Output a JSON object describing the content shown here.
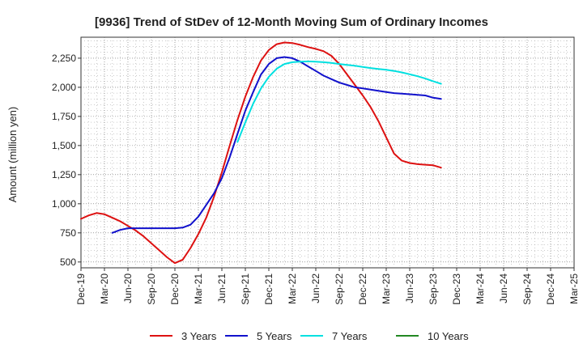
{
  "chart_data": {
    "type": "line",
    "title": "[9936]  Trend of StDev of 12-Month Moving Sum of Ordinary Incomes",
    "xlabel": "",
    "ylabel": "Amount (million yen)",
    "x_ticks": [
      "Dec-19",
      "Mar-20",
      "Jun-20",
      "Sep-20",
      "Dec-20",
      "Mar-21",
      "Jun-21",
      "Sep-21",
      "Dec-21",
      "Mar-22",
      "Jun-22",
      "Sep-22",
      "Dec-22",
      "Mar-23",
      "Jun-23",
      "Sep-23",
      "Dec-23",
      "Mar-24",
      "Jun-24",
      "Sep-24",
      "Dec-24",
      "Mar-25"
    ],
    "y_ticks": [
      "500",
      "750",
      "1,000",
      "1,250",
      "1,500",
      "1,750",
      "2,000",
      "2,250"
    ],
    "y_tick_values": [
      500,
      750,
      1000,
      1250,
      1500,
      1750,
      2000,
      2250
    ],
    "ylim": [
      450,
      2430
    ],
    "grid": true,
    "legend_position": "bottom",
    "series": [
      {
        "name": "3 Years",
        "color": "#dd1111",
        "points": [
          [
            0,
            870
          ],
          [
            1,
            900
          ],
          [
            2,
            920
          ],
          [
            3,
            910
          ],
          [
            4,
            880
          ],
          [
            5,
            850
          ],
          [
            6,
            810
          ],
          [
            7,
            770
          ],
          [
            8,
            720
          ],
          [
            9,
            660
          ],
          [
            10,
            600
          ],
          [
            11,
            540
          ],
          [
            12,
            490
          ],
          [
            13,
            520
          ],
          [
            14,
            620
          ],
          [
            15,
            740
          ],
          [
            16,
            880
          ],
          [
            17,
            1060
          ],
          [
            18,
            1270
          ],
          [
            19,
            1500
          ],
          [
            20,
            1720
          ],
          [
            21,
            1920
          ],
          [
            22,
            2090
          ],
          [
            23,
            2230
          ],
          [
            24,
            2320
          ],
          [
            25,
            2370
          ],
          [
            26,
            2385
          ],
          [
            27,
            2380
          ],
          [
            28,
            2365
          ],
          [
            29,
            2345
          ],
          [
            30,
            2330
          ],
          [
            31,
            2310
          ],
          [
            32,
            2270
          ],
          [
            33,
            2200
          ],
          [
            34,
            2110
          ],
          [
            35,
            2020
          ],
          [
            36,
            1930
          ],
          [
            37,
            1830
          ],
          [
            38,
            1710
          ],
          [
            39,
            1570
          ],
          [
            40,
            1430
          ],
          [
            41,
            1370
          ],
          [
            42,
            1350
          ],
          [
            43,
            1340
          ],
          [
            44,
            1335
          ],
          [
            45,
            1330
          ],
          [
            46,
            1310
          ]
        ]
      },
      {
        "name": "5 Years",
        "color": "#1111cc",
        "points": [
          [
            4,
            750
          ],
          [
            5,
            775
          ],
          [
            6,
            790
          ],
          [
            7,
            790
          ],
          [
            8,
            790
          ],
          [
            9,
            790
          ],
          [
            10,
            790
          ],
          [
            11,
            790
          ],
          [
            12,
            790
          ],
          [
            13,
            795
          ],
          [
            14,
            820
          ],
          [
            15,
            890
          ],
          [
            16,
            990
          ],
          [
            17,
            1090
          ],
          [
            18,
            1220
          ],
          [
            19,
            1400
          ],
          [
            20,
            1600
          ],
          [
            21,
            1800
          ],
          [
            22,
            1960
          ],
          [
            23,
            2110
          ],
          [
            24,
            2200
          ],
          [
            25,
            2250
          ],
          [
            26,
            2260
          ],
          [
            27,
            2250
          ],
          [
            28,
            2220
          ],
          [
            29,
            2180
          ],
          [
            30,
            2140
          ],
          [
            31,
            2100
          ],
          [
            32,
            2070
          ],
          [
            33,
            2040
          ],
          [
            34,
            2020
          ],
          [
            35,
            2000
          ],
          [
            36,
            1990
          ],
          [
            37,
            1980
          ],
          [
            38,
            1970
          ],
          [
            39,
            1960
          ],
          [
            40,
            1950
          ],
          [
            41,
            1945
          ],
          [
            42,
            1940
          ],
          [
            43,
            1935
          ],
          [
            44,
            1930
          ],
          [
            45,
            1910
          ],
          [
            46,
            1900
          ]
        ]
      },
      {
        "name": "7 Years",
        "color": "#00e0e0",
        "points": [
          [
            20,
            1530
          ],
          [
            21,
            1700
          ],
          [
            22,
            1860
          ],
          [
            23,
            1990
          ],
          [
            24,
            2090
          ],
          [
            25,
            2160
          ],
          [
            26,
            2200
          ],
          [
            27,
            2215
          ],
          [
            28,
            2220
          ],
          [
            29,
            2222
          ],
          [
            30,
            2220
          ],
          [
            31,
            2215
          ],
          [
            32,
            2210
          ],
          [
            33,
            2200
          ],
          [
            34,
            2192
          ],
          [
            35,
            2185
          ],
          [
            36,
            2175
          ],
          [
            37,
            2165
          ],
          [
            38,
            2158
          ],
          [
            39,
            2150
          ],
          [
            40,
            2140
          ],
          [
            41,
            2128
          ],
          [
            42,
            2112
          ],
          [
            43,
            2095
          ],
          [
            44,
            2075
          ],
          [
            45,
            2052
          ],
          [
            46,
            2030
          ]
        ]
      },
      {
        "name": "10 Years",
        "color": "#228822",
        "points": []
      }
    ]
  }
}
